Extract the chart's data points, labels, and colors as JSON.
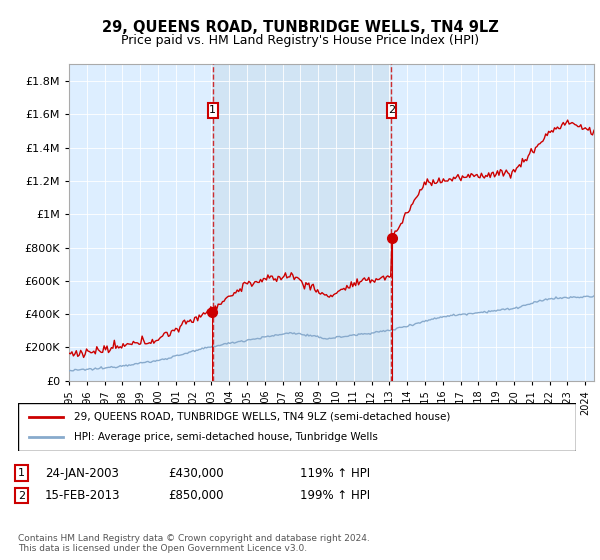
{
  "title": "29, QUEENS ROAD, TUNBRIDGE WELLS, TN4 9LZ",
  "subtitle": "Price paid vs. HM Land Registry's House Price Index (HPI)",
  "background_color": "#ffffff",
  "plot_bg_color": "#ddeeff",
  "sale1_date": "24-JAN-2003",
  "sale1_price": 430000,
  "sale1_hpi_pct": "119%",
  "sale1_x": 2003.07,
  "sale2_date": "15-FEB-2013",
  "sale2_price": 850000,
  "sale2_hpi_pct": "199%",
  "sale2_x": 2013.12,
  "ylim": [
    0,
    1900000
  ],
  "xlim": [
    1995,
    2024.5
  ],
  "legend1": "29, QUEENS ROAD, TUNBRIDGE WELLS, TN4 9LZ (semi-detached house)",
  "legend2": "HPI: Average price, semi-detached house, Tunbridge Wells",
  "footer": "Contains HM Land Registry data © Crown copyright and database right 2024.\nThis data is licensed under the Open Government Licence v3.0.",
  "red_line_color": "#cc0000",
  "blue_line_color": "#88aacc",
  "shade_color": "#cce0f0"
}
